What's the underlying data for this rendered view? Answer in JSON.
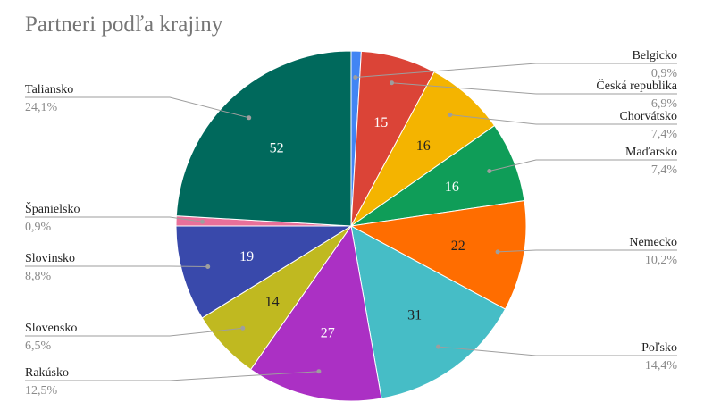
{
  "chart_data": {
    "type": "pie",
    "title": "Partneri podľa krajiny",
    "slices": [
      {
        "label": "Belgicko",
        "value": 2,
        "percent": "0,9%",
        "color": "#4285F4",
        "show_value": false,
        "value_color": "#ffffff",
        "side": "right"
      },
      {
        "label": "Česká republika",
        "value": 15,
        "percent": "6,9%",
        "color": "#DB4437",
        "show_value": true,
        "value_color": "#ffffff",
        "side": "right"
      },
      {
        "label": "Chorvátsko",
        "value": 16,
        "percent": "7,4%",
        "color": "#F4B400",
        "show_value": true,
        "value_color": "#222222",
        "side": "right"
      },
      {
        "label": "Maďarsko",
        "value": 16,
        "percent": "7,4%",
        "color": "#0F9D58",
        "show_value": true,
        "value_color": "#ffffff",
        "side": "right"
      },
      {
        "label": "Nemecko",
        "value": 22,
        "percent": "10,2%",
        "color": "#FF6D00",
        "show_value": true,
        "value_color": "#222222",
        "side": "right"
      },
      {
        "label": "Poľsko",
        "value": 31,
        "percent": "14,4%",
        "color": "#46BDC6",
        "show_value": true,
        "value_color": "#222222",
        "side": "right"
      },
      {
        "label": "Rakúsko",
        "value": 27,
        "percent": "12,5%",
        "color": "#AB30C4",
        "show_value": true,
        "value_color": "#ffffff",
        "side": "left"
      },
      {
        "label": "Slovensko",
        "value": 14,
        "percent": "6,5%",
        "color": "#C0B920",
        "show_value": true,
        "value_color": "#222222",
        "side": "left"
      },
      {
        "label": "Slovinsko",
        "value": 19,
        "percent": "8,8%",
        "color": "#3949AB",
        "show_value": true,
        "value_color": "#ffffff",
        "side": "left"
      },
      {
        "label": "Španielsko",
        "value": 2,
        "percent": "0,9%",
        "color": "#E8709A",
        "show_value": false,
        "value_color": "#ffffff",
        "side": "left"
      },
      {
        "label": "Taliansko",
        "value": 52,
        "percent": "24,1%",
        "color": "#00695C",
        "show_value": true,
        "value_color": "#ffffff",
        "side": "left"
      }
    ],
    "legend": "none",
    "label_style": "callout"
  }
}
